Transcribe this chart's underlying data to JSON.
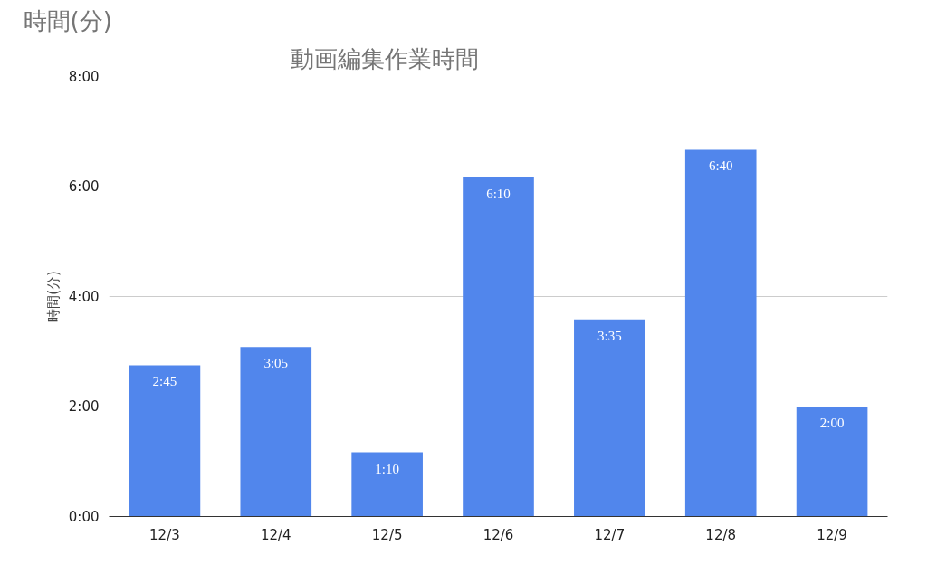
{
  "chart_data": {
    "type": "bar",
    "title": "動画編集作業時間",
    "annotations": [
      "時間(分)"
    ],
    "ylabel": "時間(分)",
    "categories": [
      "12/3",
      "12/4",
      "12/5",
      "12/6",
      "12/7",
      "12/8",
      "12/9"
    ],
    "values": [
      2.75,
      3.0833,
      1.1667,
      6.1667,
      3.5833,
      6.6667,
      2.0
    ],
    "value_labels": [
      "2:45",
      "3:05",
      "1:10",
      "6:10",
      "3:35",
      "6:40",
      "2:00"
    ],
    "color": "#5186ec",
    "ylim": [
      0,
      8
    ],
    "yticks": [
      {
        "value": 0,
        "label": "0:00"
      },
      {
        "value": 2,
        "label": "2:00"
      },
      {
        "value": 4,
        "label": "4:00"
      },
      {
        "value": 6,
        "label": "6:00"
      },
      {
        "value": 8,
        "label": "8:00"
      }
    ],
    "grid": "y"
  }
}
